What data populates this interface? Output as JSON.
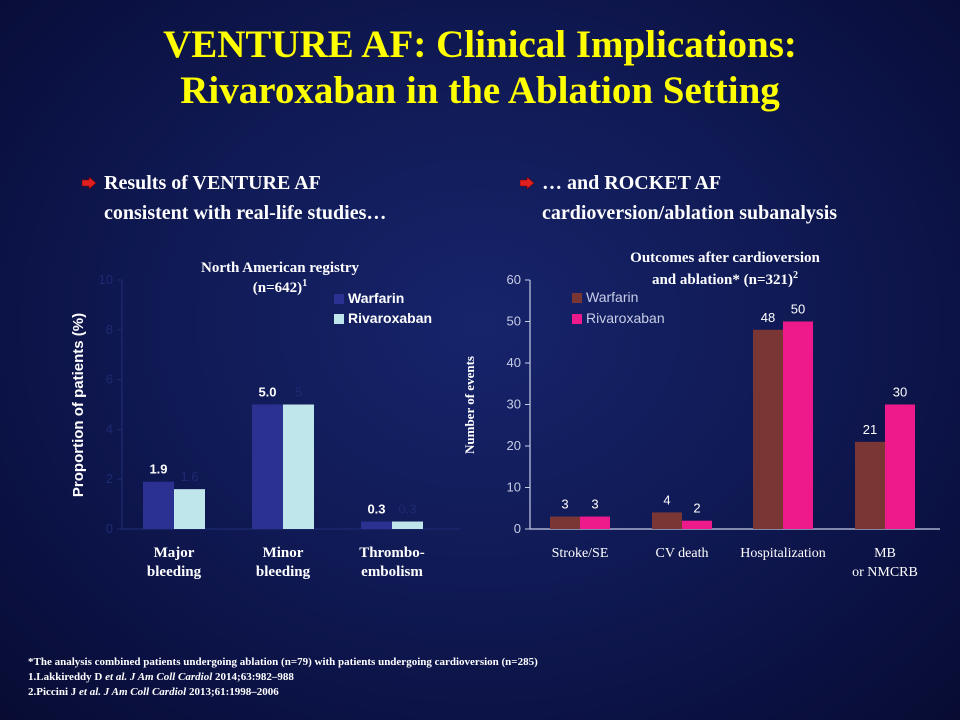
{
  "slide": {
    "title_line1": "VENTURE AF: Clinical Implications:",
    "title_line2": "Rivaroxaban in the Ablation Setting",
    "bullet_left_line1": "Results of VENTURE AF",
    "bullet_left_line2": "consistent with real-life studies…",
    "bullet_right_line1": "… and ROCKET AF",
    "bullet_right_line2": "cardioversion/ablation subanalysis",
    "colors": {
      "background": "#0f1a55",
      "title": "#ffff00",
      "bullet_arrow": "#e02020"
    },
    "icons": {
      "bullet": "red-arrow-icon"
    }
  },
  "footnotes": {
    "note": "*The analysis combined patients undergoing ablation (n=79) with patients undergoing cardioversion (n=285)",
    "ref1_authors": "1.Lakkireddy D ",
    "ref1_journal": "et al. J Am Coll Cardiol",
    "ref1_rest": " 2014;63:982–988",
    "ref2_authors": "2.Piccini J ",
    "ref2_journal": "et al. J Am Coll Cardiol",
    "ref2_rest": " 2013;61:1998–2006"
  },
  "chart_data": [
    {
      "type": "bar",
      "title": "North American registry",
      "subtitle": "(n=642)",
      "subtitle_sup": "1",
      "ylabel": "Proportion of patients (%)",
      "ylim": [
        0,
        10
      ],
      "yticks": [
        "0",
        "2",
        "4",
        "6",
        "8",
        "10"
      ],
      "categories": [
        "Major\nbleeding",
        "Minor\nbleeding",
        "Thrombo-\nembolism"
      ],
      "series": [
        {
          "name": "Warfarin",
          "values": [
            1.9,
            5.0,
            0.3
          ],
          "labels": [
            "1.9",
            "5.0",
            "0.3"
          ],
          "color": "#2b3190"
        },
        {
          "name": "Rivaroxaban",
          "values": [
            1.6,
            5.0,
            0.3
          ],
          "labels": [
            "1.6",
            "5",
            "0.3"
          ],
          "color": "#bfe6ea"
        }
      ],
      "legend_position": "top-right"
    },
    {
      "type": "bar",
      "title": "Outcomes after cardioversion",
      "subtitle": "and ablation* (n=321)",
      "subtitle_sup": "2",
      "ylabel": "Number of events",
      "ylim": [
        0,
        60
      ],
      "yticks": [
        "0",
        "10",
        "20",
        "30",
        "40",
        "50",
        "60"
      ],
      "categories": [
        "Stroke/SE",
        "CV death",
        "Hospitalization",
        "MB\nor NMCRB"
      ],
      "series": [
        {
          "name": "Warfarin",
          "values": [
            3,
            4,
            48,
            21
          ],
          "labels": [
            "3",
            "4",
            "48",
            "21"
          ],
          "color": "#7a3535"
        },
        {
          "name": "Rivaroxaban",
          "values": [
            3,
            2,
            50,
            30
          ],
          "labels": [
            "3",
            "2",
            "50",
            "30"
          ],
          "color": "#ee1a8c"
        }
      ],
      "legend_position": "top-left"
    }
  ]
}
